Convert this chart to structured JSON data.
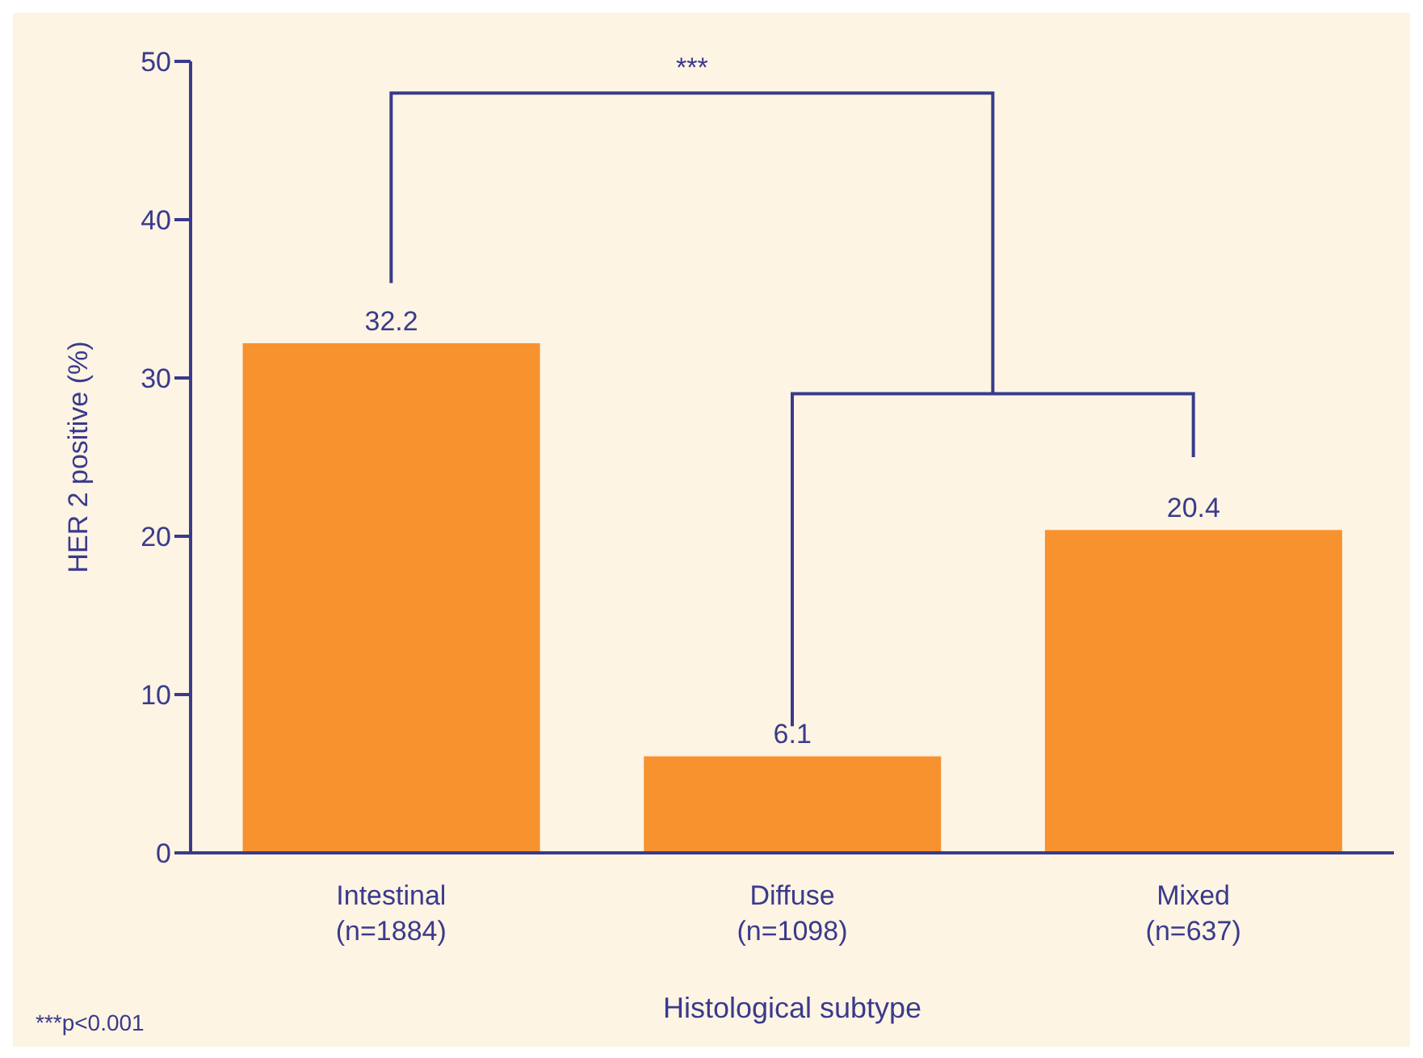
{
  "chart_data": {
    "type": "bar",
    "categories": [
      "Intestinal\n(n=1884)",
      "Diffuse\n(n=1098)",
      "Mixed\n(n=637)"
    ],
    "values": [
      32.2,
      6.1,
      20.4
    ],
    "color": "#f7922f",
    "ylabel": "HER 2 positive (%)",
    "xlabel": "Histological subtype",
    "ylim": [
      0,
      50
    ],
    "yticks": [
      0,
      10,
      20,
      30,
      40,
      50
    ],
    "data_labels": true,
    "annotations": [
      "***",
      "***p<0.001"
    ]
  }
}
